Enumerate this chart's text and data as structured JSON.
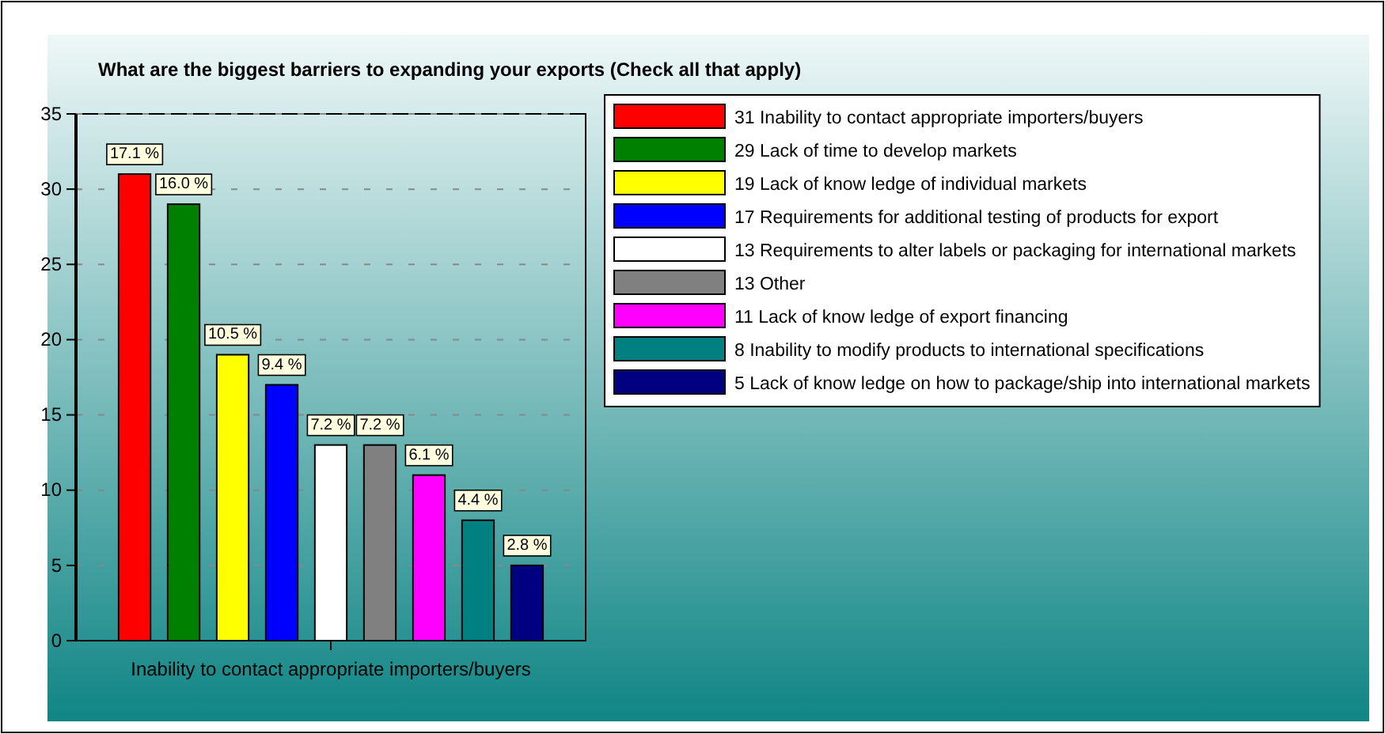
{
  "chart_data": {
    "type": "bar",
    "title": "What are the biggest barriers to expanding your exports (Check all that apply)",
    "categories": [
      "Inability to contact appropriate importers/buyers"
    ],
    "series": [
      {
        "name": "31 Inability to contact appropriate importers/buyers",
        "color": "#ff0000",
        "values": [
          31
        ]
      },
      {
        "name": "29 Lack of time to develop markets",
        "color": "#008000",
        "values": [
          29
        ]
      },
      {
        "name": "19 Lack of know ledge of individual markets",
        "color": "#ffff00",
        "values": [
          19
        ]
      },
      {
        "name": "17 Requirements for additional testing of products for export",
        "color": "#0000ff",
        "values": [
          17
        ]
      },
      {
        "name": "13 Requirements to alter labels or packaging for international markets",
        "color": "#ffffff",
        "values": [
          13
        ]
      },
      {
        "name": "13 Other",
        "color": "#808080",
        "values": [
          13
        ]
      },
      {
        "name": "11 Lack of know ledge of export financing",
        "color": "#ff00ff",
        "values": [
          11
        ]
      },
      {
        "name": "8 Inability to modify products to international specifications",
        "color": "#008080",
        "values": [
          8
        ]
      },
      {
        "name": "5 Lack of know ledge on how to package/ship into international markets",
        "color": "#000080",
        "values": [
          5
        ]
      }
    ],
    "annotations": [
      "17.1 %",
      "16.0 %",
      "10.5 %",
      "9.4 %",
      "7.2 %",
      "7.2 %",
      "6.1 %",
      "4.4 %",
      "2.8 %"
    ],
    "ylim": [
      0,
      35
    ],
    "yticks": [
      0,
      5,
      10,
      15,
      20,
      25,
      30,
      35
    ],
    "grid": "y",
    "legend": "right"
  }
}
